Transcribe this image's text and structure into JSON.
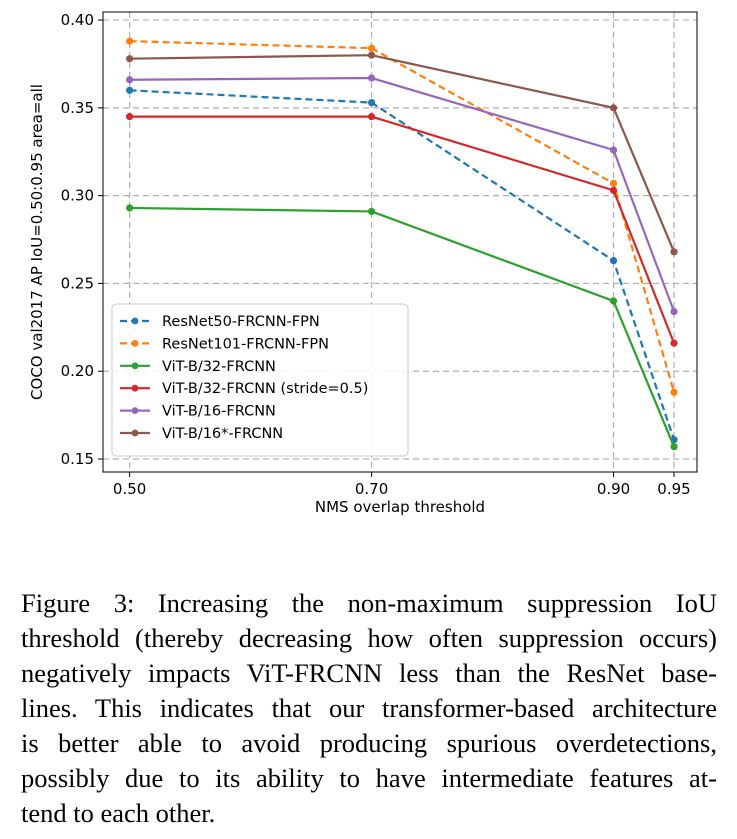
{
  "chart_data": {
    "type": "line",
    "title": "",
    "xlabel": "NMS overlap threshold",
    "ylabel": "COCO val2017 AP IoU=0.50:0.95 area=all",
    "x": [
      0.5,
      0.7,
      0.9,
      0.95
    ],
    "xticks": [
      "0.50",
      "0.70",
      "0.90",
      "0.95"
    ],
    "yticks": [
      "0.15",
      "0.20",
      "0.25",
      "0.30",
      "0.35",
      "0.40"
    ],
    "xlim": [
      0.478,
      0.969
    ],
    "ylim": [
      0.1426,
      0.4046
    ],
    "grid": true,
    "legend_position": "lower-left",
    "series": [
      {
        "name": "ResNet50-FRCNN-FPN",
        "color": "#1f77b4",
        "dashed": true,
        "values": [
          0.36,
          0.353,
          0.263,
          0.161
        ]
      },
      {
        "name": "ResNet101-FRCNN-FPN",
        "color": "#ff7f0e",
        "dashed": true,
        "values": [
          0.388,
          0.384,
          0.307,
          0.188
        ]
      },
      {
        "name": "ViT-B/32-FRCNN",
        "color": "#2ca02c",
        "dashed": false,
        "values": [
          0.293,
          0.291,
          0.24,
          0.157
        ]
      },
      {
        "name": "ViT-B/32-FRCNN (stride=0.5)",
        "color": "#d62728",
        "dashed": false,
        "values": [
          0.345,
          0.345,
          0.303,
          0.216
        ]
      },
      {
        "name": "ViT-B/16-FRCNN",
        "color": "#9467bd",
        "dashed": false,
        "values": [
          0.366,
          0.367,
          0.326,
          0.234
        ]
      },
      {
        "name": "ViT-B/16*-FRCNN",
        "color": "#8c564b",
        "dashed": false,
        "values": [
          0.378,
          0.38,
          0.35,
          0.268
        ]
      }
    ]
  },
  "caption": {
    "lines": [
      "Figure 3: Increasing the non-maximum suppression IoU",
      "threshold (thereby decreasing how often suppression occurs)",
      "negatively impacts ViT-FRCNN less than the ResNet base-",
      "lines. This indicates that our transformer-based architecture",
      "is better able to avoid producing spurious overdetections,",
      "possibly due to its ability to have intermediate features at-",
      "tend to each other."
    ]
  }
}
